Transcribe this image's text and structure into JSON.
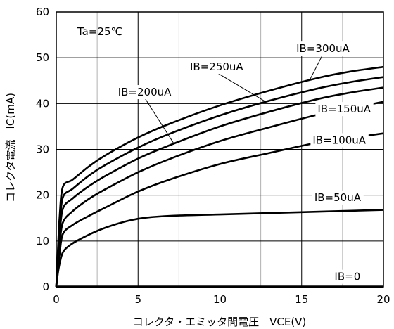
{
  "chart_data": {
    "type": "line",
    "xlabel": "コレクタ・エミッタ間電圧　VCE(V)",
    "ylabel": "コレクタ電流　IC(mA)",
    "xlim": [
      0,
      20
    ],
    "ylim": [
      0,
      60
    ],
    "xticks": [
      "0",
      "5",
      "10",
      "15",
      "20"
    ],
    "yticks": [
      "0",
      "10",
      "20",
      "30",
      "40",
      "50",
      "60"
    ],
    "grid": true,
    "annotation": "Ta=25℃",
    "series": [
      {
        "name": "IB=0",
        "x": [
          0,
          20
        ],
        "y": [
          0,
          0
        ]
      },
      {
        "name": "IB=50uA",
        "x": [
          0,
          0.1,
          0.2,
          0.4,
          0.8,
          1.5,
          2.5,
          3.5,
          4.5,
          5.5,
          7,
          10,
          15,
          20
        ],
        "y": [
          0,
          3,
          5,
          7.5,
          9,
          10.5,
          12.2,
          13.5,
          14.5,
          15.1,
          15.5,
          15.8,
          16.3,
          16.8
        ]
      },
      {
        "name": "IB=100uA",
        "x": [
          0,
          0.1,
          0.2,
          0.4,
          1,
          2,
          3,
          5,
          7,
          10,
          13,
          16,
          18,
          20
        ],
        "y": [
          0,
          4,
          7,
          11.5,
          13.5,
          15.5,
          17.3,
          20.8,
          23.5,
          26.8,
          29.2,
          31.5,
          32.5,
          33.5
        ]
      },
      {
        "name": "IB=150uA",
        "x": [
          0,
          0.1,
          0.2,
          0.4,
          1,
          2,
          3,
          5,
          7,
          10,
          13,
          16,
          18,
          20
        ],
        "y": [
          0,
          5,
          9,
          14,
          16.5,
          19.2,
          21.3,
          25,
          28,
          31.8,
          34.8,
          37.6,
          39,
          40.4
        ]
      },
      {
        "name": "IB=200uA",
        "x": [
          0,
          0.1,
          0.2,
          0.4,
          1,
          2,
          3,
          5,
          7,
          10,
          13,
          16,
          18,
          20
        ],
        "y": [
          0,
          6,
          11,
          17,
          19.3,
          22,
          24.2,
          28,
          31,
          35,
          38.2,
          41,
          42.4,
          43.5
        ]
      },
      {
        "name": "IB=250uA",
        "x": [
          0,
          0.1,
          0.2,
          0.4,
          1,
          2,
          3,
          5,
          7,
          10,
          13,
          16,
          18,
          20
        ],
        "y": [
          0,
          7,
          13,
          19.5,
          21.4,
          24.3,
          26.6,
          30.4,
          33.5,
          37.4,
          40.6,
          43.3,
          44.7,
          45.8
        ]
      },
      {
        "name": "IB=300uA",
        "x": [
          0,
          0.1,
          0.2,
          0.4,
          1,
          2,
          3,
          5,
          7,
          10,
          13,
          16,
          18,
          20
        ],
        "y": [
          0,
          8,
          15,
          21.8,
          23.4,
          26.3,
          28.7,
          32.6,
          35.7,
          39.6,
          42.8,
          45.6,
          47,
          48
        ]
      }
    ],
    "labels": [
      {
        "text": "IB=300uA",
        "x": 16.3,
        "y": 52,
        "target_x": 15.5,
        "target_y": 45.2
      },
      {
        "text": "IB=250uA",
        "x": 9.8,
        "y": 48,
        "target_x": 12.8,
        "target_y": 40.4
      },
      {
        "text": "IB=200uA",
        "x": 5.4,
        "y": 42.5,
        "target_x": 7.2,
        "target_y": 31.2
      },
      {
        "text": "IB=150uA",
        "x": 17.6,
        "y": 38.8
      },
      {
        "text": "IB=100uA",
        "x": 17.3,
        "y": 32
      },
      {
        "text": "IB=50uA",
        "x": 17.2,
        "y": 19.5
      },
      {
        "text": "IB=0",
        "x": 17.8,
        "y": 2.2
      }
    ]
  }
}
